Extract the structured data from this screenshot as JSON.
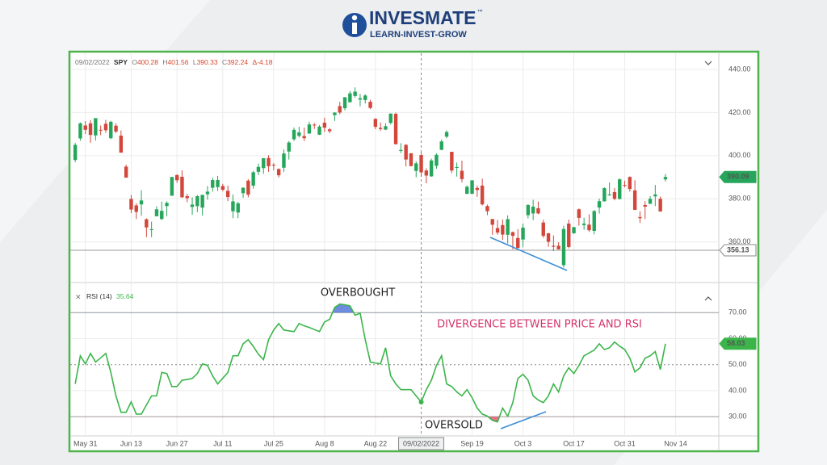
{
  "logo": {
    "name": "INVESMATE",
    "trademark": "™",
    "tagline": "LEARN-INVEST-GROW"
  },
  "chart_data": {
    "type": "candlestick",
    "symbol": "SPY",
    "ohlc_labels": [
      "O",
      "H",
      "L",
      "C",
      "Δ"
    ],
    "change": -4.18,
    "up_color": "#26a65b",
    "down_color": "#d2473b",
    "crosshair_price": 356.13,
    "ylim": [
      343,
      446
    ],
    "yticks": [
      {
        "value": 360,
        "label": "360.00"
      },
      {
        "value": 380,
        "label": "380.00"
      },
      {
        "value": 400,
        "label": "400.00"
      },
      {
        "value": 420,
        "label": "420.00"
      },
      {
        "value": 440,
        "label": "440.00"
      }
    ],
    "grid": true,
    "categories": [
      null,
      null,
      "May 31",
      null,
      null,
      null,
      null,
      null,
      null,
      null,
      null,
      "Jun 13",
      null,
      null,
      null,
      null,
      null,
      null,
      null,
      null,
      "Jun 27",
      null,
      null,
      null,
      null,
      null,
      null,
      null,
      null,
      "Jul 11",
      null,
      null,
      null,
      null,
      null,
      null,
      null,
      null,
      null,
      "Jul 25",
      null,
      null,
      null,
      null,
      null,
      null,
      null,
      null,
      null,
      "Aug 8",
      null,
      null,
      null,
      null,
      null,
      null,
      null,
      null,
      null,
      "Aug 22",
      null,
      null,
      null,
      null,
      null,
      null,
      null,
      null,
      "09/02/2022",
      null,
      null,
      null,
      null,
      null,
      null,
      null,
      null,
      null,
      "Sep 19",
      null,
      null,
      null,
      null,
      null,
      null,
      null,
      null,
      null,
      "Oct 3",
      null,
      null,
      null,
      null,
      null,
      null,
      null,
      null,
      null,
      "Oct 17",
      null,
      null,
      null,
      null,
      null,
      null,
      null,
      null,
      null,
      "Oct 31",
      null,
      null,
      null,
      null,
      null,
      null,
      null,
      null,
      null,
      "Nov 14"
    ],
    "open": [
      398,
      408,
      414,
      415,
      409.4,
      412,
      414.8,
      408.1,
      413.9,
      409.3,
      394.9,
      379.9,
      376.9,
      377.4,
      370.5,
      365.5,
      371.9,
      370.6,
      376.6,
      381.4,
      391,
      390.2,
      381.2,
      376.2,
      376.6,
      375.9,
      382.1,
      385.1,
      385.4,
      385.9,
      383.7,
      374.2,
      373.6,
      382.6,
      388.4,
      386.1,
      392.5,
      394.2,
      398.9,
      395.8,
      393.8,
      394.4,
      401.9,
      407.6,
      409.2,
      409.1,
      410.3,
      414.4,
      409.7,
      415.3,
      412.2,
      418.8,
      422.99,
      422,
      424.8,
      427.7,
      425.99,
      425.8,
      424.98,
      417.05,
      412.9,
      412.1,
      415.2,
      419.4,
      402.2,
      405,
      401.1,
      392.9,
      400.28,
      393.1,
      390.4,
      395.3,
      402.7,
      408.8,
      401.8,
      394.5,
      392.96,
      382.3,
      382.3,
      385,
      386.1,
      376.6,
      370.6,
      366.4,
      367.8,
      363.3,
      364.5,
      361.8,
      361.1,
      372.4,
      373.2,
      375.6,
      368.97,
      363.96,
      358.2,
      358.2,
      349.2,
      368.5,
      364,
      375.1,
      367.8,
      368,
      365.1,
      375.9,
      378.8,
      381.6,
      383.1,
      379.9,
      386.4,
      390.1,
      383.9,
      371.5,
      377.1,
      377.7,
      381.1,
      380,
      389,
      null,
      null
    ],
    "high": [
      406,
      415.4,
      416,
      416.5,
      417.4,
      414,
      416.6,
      416.2,
      415,
      411.7,
      395.8,
      381.8,
      377.9,
      383.9,
      370.9,
      369.4,
      376.5,
      378.7,
      378.8,
      390.1,
      391.4,
      393.2,
      382.3,
      380.7,
      381.7,
      381.9,
      385.9,
      389.8,
      390.6,
      386.9,
      386.1,
      382,
      378.6,
      385.3,
      389.1,
      392.9,
      396.3,
      398.8,
      400.2,
      396.5,
      394.1,
      402.9,
      406.8,
      413,
      413.4,
      413,
      415.7,
      415.1,
      414.2,
      417.6,
      412.8,
      420.1,
      424.95,
      427.2,
      429.9,
      431.7,
      428.6,
      428.5,
      425.9,
      417.4,
      415.4,
      415.1,
      419.6,
      419.96,
      405.8,
      405.4,
      401.2,
      397.4,
      401.56,
      394.1,
      398.6,
      401.1,
      407.5,
      411.7,
      401.8,
      396.8,
      397.7,
      386.2,
      388.6,
      386.1,
      389.3,
      377.3,
      370.6,
      370.2,
      370.4,
      372.3,
      364.8,
      365.9,
      368.5,
      377.5,
      379.5,
      378.7,
      370.3,
      364.2,
      363,
      359.8,
      367.5,
      370.3,
      367,
      375.5,
      371.2,
      372.7,
      374.8,
      380.1,
      385.3,
      387.6,
      385,
      389.5,
      388.4,
      390.4,
      388.6,
      374.2,
      378.9,
      381.2,
      386.4,
      381,
      391.5,
      null,
      null
    ],
    "low": [
      397,
      407,
      410,
      406,
      407,
      409.5,
      410.6,
      407.6,
      410.4,
      401.4,
      389.8,
      373.3,
      370.6,
      372.1,
      362.2,
      362.2,
      371.8,
      370.2,
      371.9,
      381.4,
      387.4,
      380.4,
      378.4,
      372.6,
      373.8,
      372.3,
      379.6,
      383.3,
      383.6,
      383.5,
      378.9,
      371,
      371,
      380.5,
      380.7,
      384.7,
      391,
      391.6,
      392.5,
      393.2,
      389.9,
      392.4,
      398.2,
      406.8,
      408.4,
      406.8,
      410,
      412.4,
      409.6,
      411,
      410.4,
      416.1,
      419.2,
      421,
      424.6,
      426.9,
      422.9,
      424.2,
      421.6,
      412.3,
      411.5,
      411.8,
      414.5,
      405.3,
      401.2,
      395,
      395,
      390,
      390.33,
      387.2,
      390.2,
      393.9,
      402.5,
      408.1,
      391.9,
      390.3,
      387.6,
      382.1,
      382.2,
      380.9,
      376.9,
      372.4,
      363.3,
      363.3,
      360.9,
      359.2,
      356.6,
      357,
      357.5,
      370.9,
      370.1,
      372.8,
      361.9,
      357.7,
      355.7,
      356.4,
      348.1,
      356.96,
      363.7,
      367.5,
      365.6,
      364.6,
      363.5,
      373.1,
      378.7,
      381.4,
      379.3,
      379.7,
      385.3,
      383.3,
      374.8,
      368.8,
      370.6,
      377.5,
      376.6,
      374,
      388,
      null,
      null
    ],
    "close": [
      405,
      415,
      412,
      409.6,
      417.4,
      411.8,
      411.8,
      415.7,
      411.2,
      401.4,
      389.8,
      375,
      373.9,
      379.2,
      366.7,
      365.9,
      375.1,
      374.4,
      378.1,
      390.1,
      388.6,
      380.7,
      380.3,
      377.3,
      381.2,
      381.8,
      383.3,
      388.7,
      388.7,
      384.2,
      380.8,
      378.8,
      377.9,
      385.1,
      381.9,
      392.3,
      394.8,
      398.8,
      395.1,
      395.6,
      390.9,
      401,
      406.1,
      411.99,
      410.8,
      408.1,
      414.5,
      414.3,
      413.5,
      412.99,
      411.35,
      419.99,
      419.99,
      427.1,
      428.9,
      429.7,
      426.65,
      427.9,
      422.14,
      413.35,
      412.35,
      413.67,
      419.51,
      405.31,
      402.63,
      398.21,
      395.18,
      396.42,
      392.24,
      390.76,
      397.78,
      400.38,
      406.6,
      410.97,
      393.1,
      394.69,
      389.12,
      385.56,
      388.55,
      384.09,
      377.39,
      374.22,
      367.95,
      364.31,
      363.38,
      370.53,
      362.79,
      357.18,
      366.61,
      377.09,
      376.35,
      373.2,
      362.79,
      360.02,
      357.74,
      356.56,
      365.97,
      357.63,
      366.82,
      371.13,
      368.5,
      365.41,
      374.29,
      378.87,
      384.92,
      382.02,
      379.98,
      389.02,
      386.21,
      384.52,
      374.87,
      371.01,
      376.35,
      379.95,
      382,
      374.13,
      390.09,
      null,
      null
    ],
    "rsi": {
      "type": "line",
      "name": "RSI (14)",
      "color": "#3bb54a",
      "ylim": [
        22.6,
        80
      ],
      "yticks": [
        {
          "value": 30,
          "label": "30.00"
        },
        {
          "value": 40,
          "label": "40.00"
        },
        {
          "value": 50,
          "label": "50.00"
        },
        {
          "value": 60,
          "label": "60.00"
        },
        {
          "value": 70,
          "label": "70.00"
        }
      ],
      "values": [
        42.6,
        53.4,
        50.3,
        54.3,
        51,
        52.6,
        54.3,
        47,
        38,
        31.7,
        31.7,
        35.7,
        31,
        31,
        34.5,
        38,
        38,
        47,
        46.6,
        41.6,
        41.6,
        44,
        44.3,
        44.7,
        46.6,
        50.3,
        49.7,
        45.7,
        42.6,
        44.8,
        47,
        53.4,
        53.4,
        58,
        59.6,
        57,
        54,
        51.9,
        59.6,
        63.3,
        65.8,
        63.3,
        63,
        62.7,
        65.8,
        64.9,
        64.3,
        63.5,
        62.7,
        66.4,
        67.4,
        72,
        73.3,
        73,
        72.6,
        69,
        69.8,
        59.6,
        51,
        50.6,
        50.3,
        56.5,
        45.7,
        42.6,
        40.4,
        40.4,
        40.4,
        38,
        35.64,
        40.4,
        44,
        49.7,
        53.4,
        42.6,
        41.6,
        39.5,
        38,
        40.4,
        37.3,
        33.3,
        31,
        30.2,
        28.6,
        28,
        33.3,
        30.2,
        35.4,
        44.7,
        46.3,
        44,
        38,
        36.4,
        35.4,
        38,
        42.6,
        39.5,
        45.7,
        48.8,
        46.6,
        49.7,
        53.4,
        54.5,
        55.6,
        58,
        55.8,
        56.5,
        58.7,
        57.1,
        55.8,
        52.5,
        47.2,
        48.8,
        52.5,
        53.4,
        55,
        48.1,
        58.03,
        null,
        null
      ]
    },
    "annotations": [
      "OVERBOUGHT",
      "OVERSOLD",
      "DIVERGENCE BETWEEN PRICE AND RSI"
    ]
  }
}
